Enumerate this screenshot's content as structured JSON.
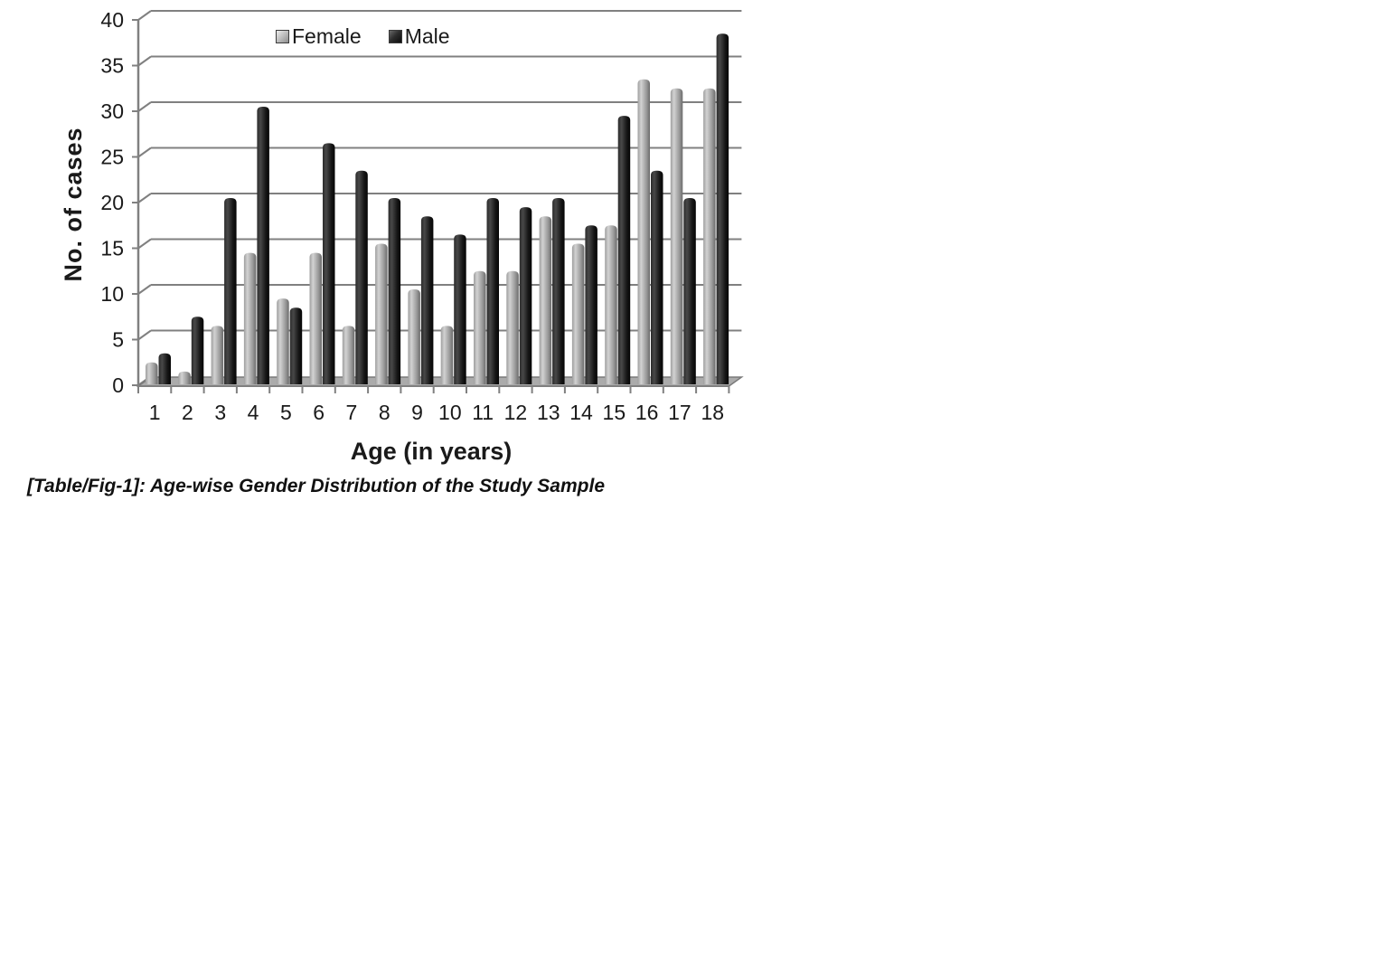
{
  "figure": {
    "caption": "[Table/Fig-1]: Age-wise Gender Distribution of the Study Sample"
  },
  "chart_data": {
    "type": "bar",
    "style": "3d-column",
    "title": "",
    "xlabel": "Age (in years)",
    "ylabel": "No. of cases",
    "categories": [
      "1",
      "2",
      "3",
      "4",
      "5",
      "6",
      "7",
      "8",
      "9",
      "10",
      "11",
      "12",
      "13",
      "14",
      "15",
      "16",
      "17",
      "18"
    ],
    "series": [
      {
        "name": "Female",
        "color": "#a9a9a9",
        "gradient": [
          "#9e9e9e",
          "#d2d2d2",
          "#999999",
          "#6b6b6b"
        ],
        "values": [
          2,
          1,
          6,
          14,
          9,
          14,
          6,
          15,
          10,
          6,
          12,
          12,
          18,
          15,
          17,
          33,
          32,
          32
        ]
      },
      {
        "name": "Male",
        "color": "#1c1c1c",
        "gradient": [
          "#2b2b2b",
          "#484848",
          "#161616",
          "#050505"
        ],
        "values": [
          3,
          7,
          20,
          30,
          8,
          26,
          23,
          20,
          18,
          16,
          20,
          19,
          20,
          17,
          29,
          23,
          20,
          38
        ]
      }
    ],
    "ylim": [
      0,
      40
    ],
    "ytick_step": 5,
    "yticks": [
      "0",
      "5",
      "10",
      "15",
      "20",
      "25",
      "30",
      "35",
      "40"
    ],
    "grid": "horizontal",
    "legend_position": "top-center",
    "axis_color": "#808080",
    "floor_color": "#ababab",
    "text_color": "#1a1a1a"
  }
}
